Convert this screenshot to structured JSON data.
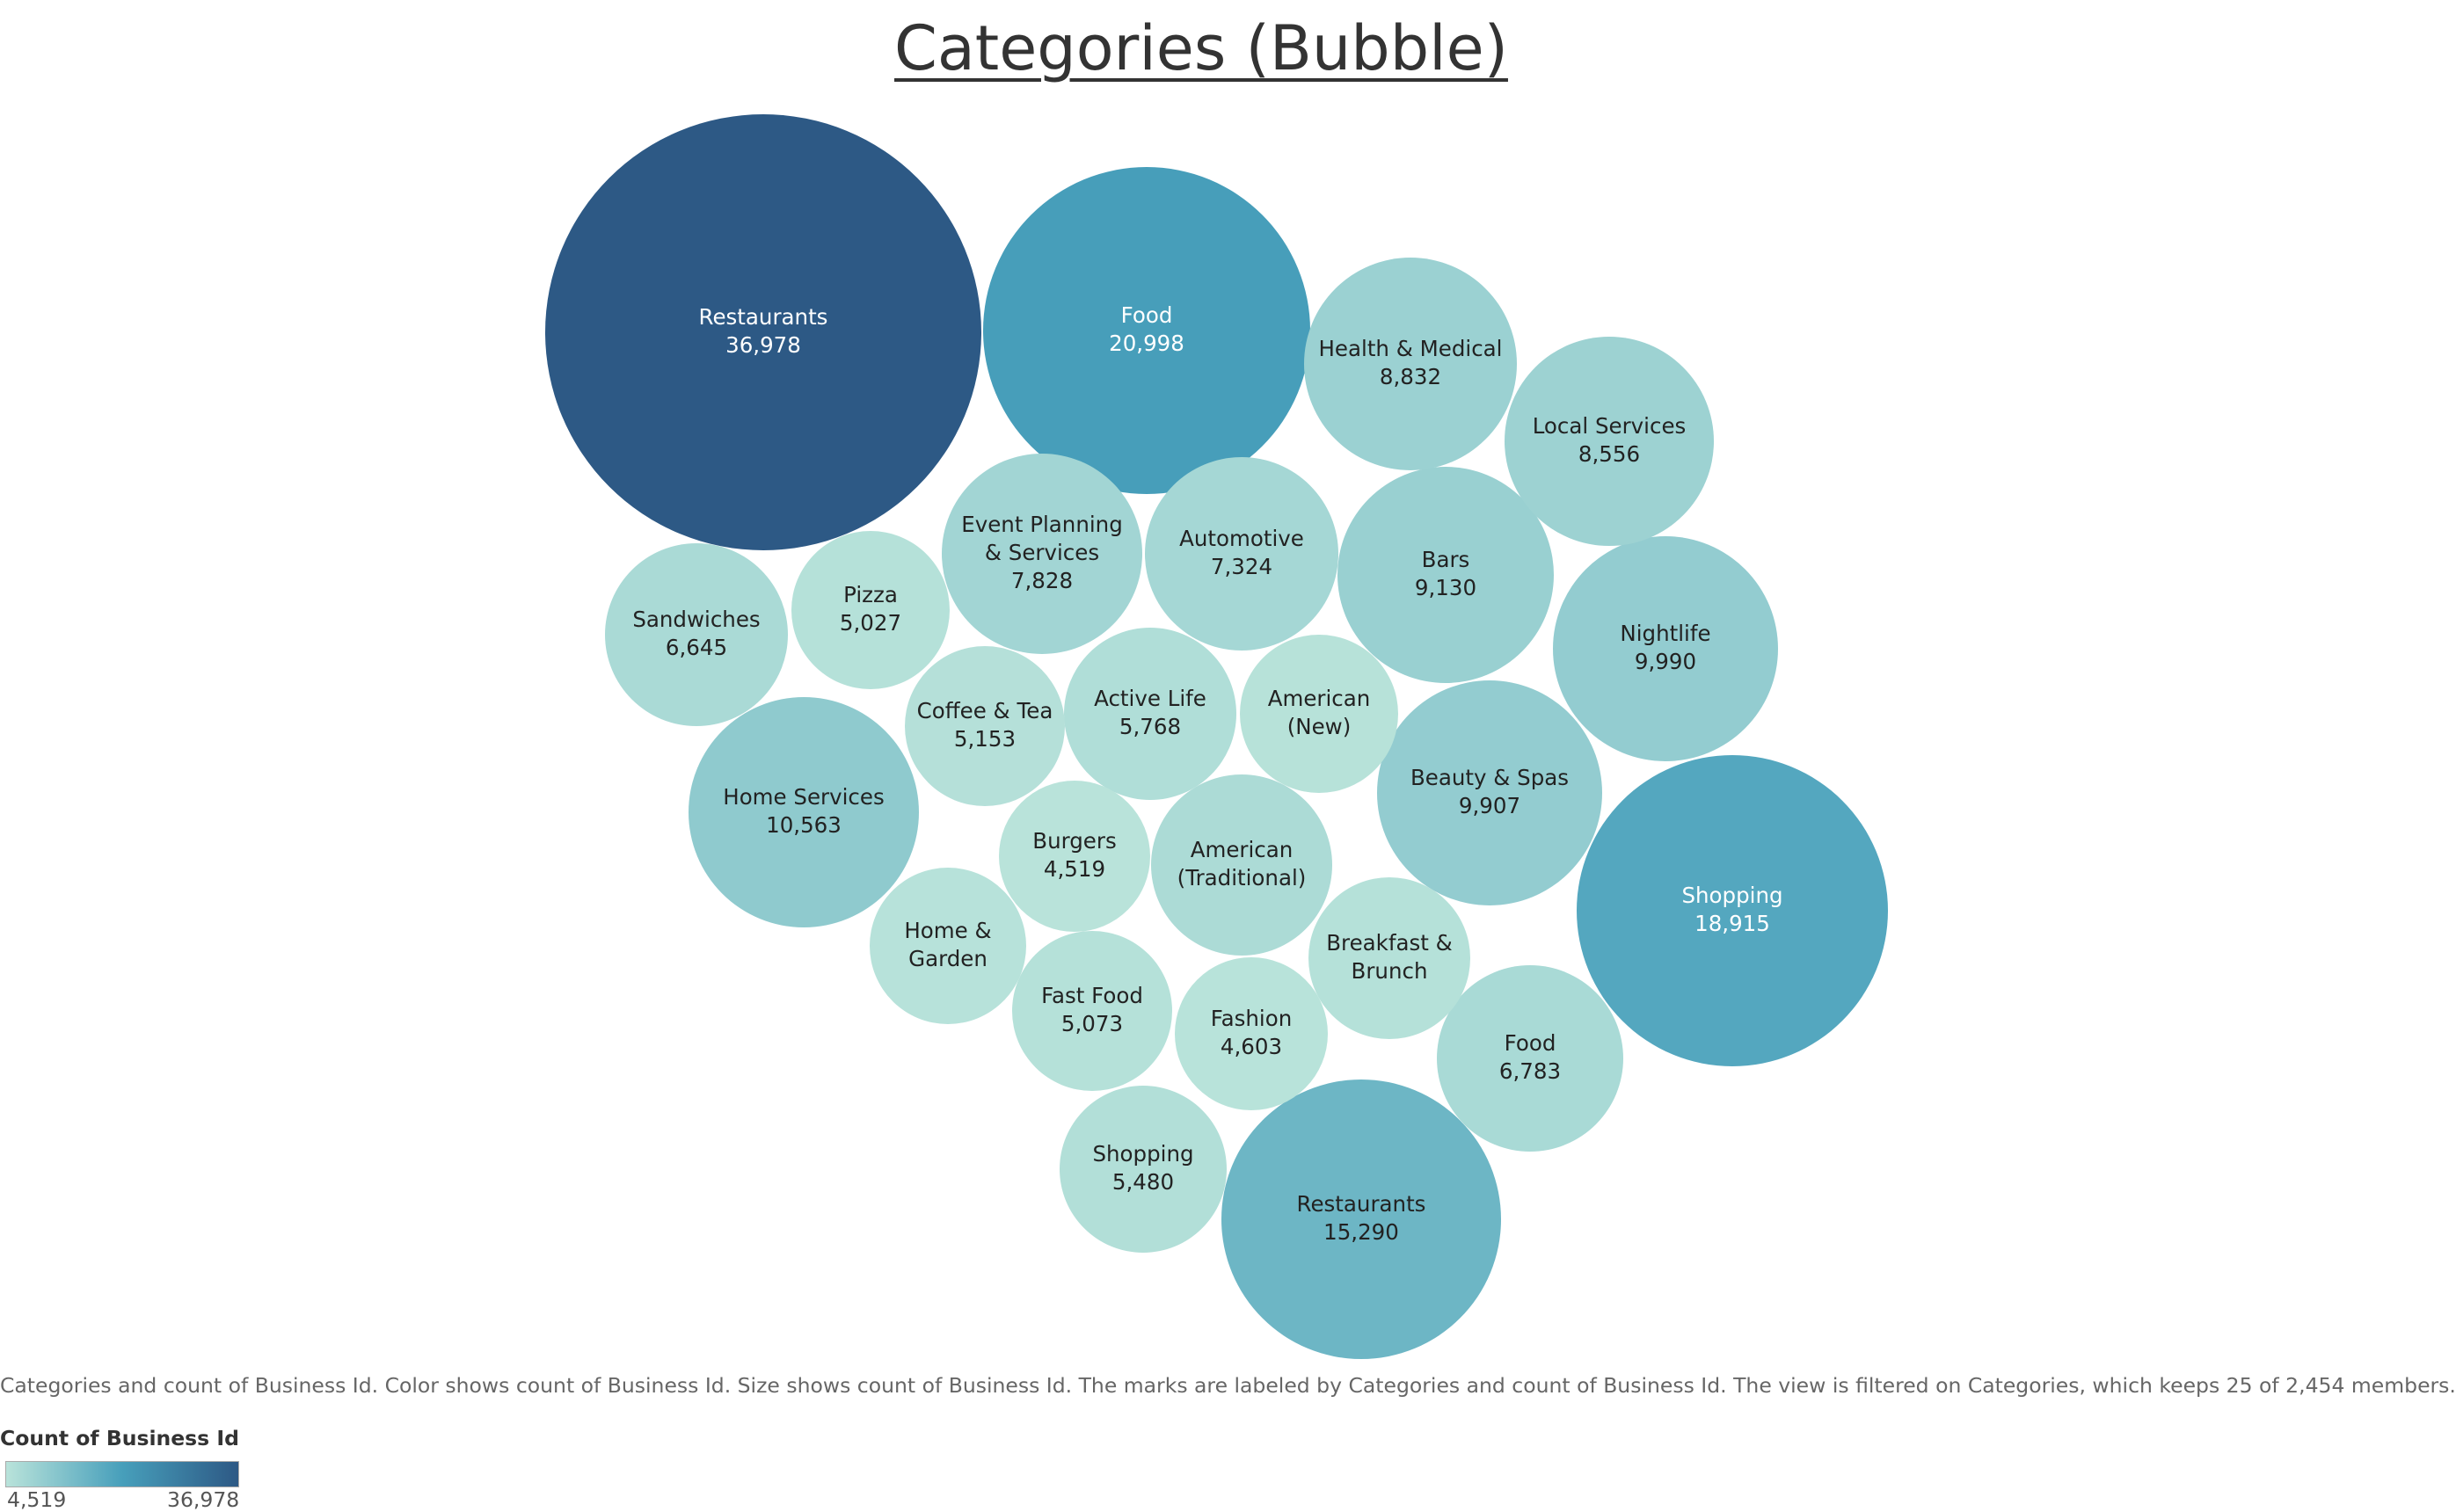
{
  "chart_data": {
    "type": "bubble",
    "title": "Categories (Bubble)",
    "caption": "Categories and count of Business Id.  Color shows count of Business Id.  Size shows count of Business Id.  The marks are labeled by Categories and count of Business Id. The view is filtered on Categories, which keeps 25 of 2,454 members.",
    "legend": {
      "title": "Count of Business Id",
      "min_label": "4,519",
      "max_label": "36,978",
      "min": 4519,
      "max": 36978,
      "colors": [
        "#b9e3da",
        "#479fbb",
        "#2d5985"
      ]
    },
    "bubbles": [
      {
        "category": "Restaurants",
        "lines": [
          "Restaurants"
        ],
        "value": 36978,
        "value_label": "36,978"
      },
      {
        "category": "Food",
        "lines": [
          "Food"
        ],
        "value": 20998,
        "value_label": "20,998"
      },
      {
        "category": "Shopping",
        "lines": [
          "Shopping"
        ],
        "value": 18915,
        "value_label": "18,915"
      },
      {
        "category": "Restaurants",
        "lines": [
          "Restaurants"
        ],
        "value": 15290,
        "value_label": "15,290"
      },
      {
        "category": "Home Services",
        "lines": [
          "Home Services"
        ],
        "value": 10563,
        "value_label": "10,563"
      },
      {
        "category": "Nightlife",
        "lines": [
          "Nightlife"
        ],
        "value": 9990,
        "value_label": "9,990"
      },
      {
        "category": "Beauty & Spas",
        "lines": [
          "Beauty & Spas"
        ],
        "value": 9907,
        "value_label": "9,907"
      },
      {
        "category": "Bars",
        "lines": [
          "Bars"
        ],
        "value": 9130,
        "value_label": "9,130"
      },
      {
        "category": "Health & Medical",
        "lines": [
          "Health & Medical"
        ],
        "value": 8832,
        "value_label": "8,832"
      },
      {
        "category": "Local Services",
        "lines": [
          "Local Services"
        ],
        "value": 8556,
        "value_label": "8,556"
      },
      {
        "category": "Event Planning & Services",
        "lines": [
          "Event Planning",
          "& Services"
        ],
        "value": 7828,
        "value_label": "7,828"
      },
      {
        "category": "Automotive",
        "lines": [
          "Automotive"
        ],
        "value": 7324,
        "value_label": "7,324"
      },
      {
        "category": "Food",
        "lines": [
          "Food"
        ],
        "value": 6783,
        "value_label": "6,783"
      },
      {
        "category": "Sandwiches",
        "lines": [
          "Sandwiches"
        ],
        "value": 6645,
        "value_label": "6,645"
      },
      {
        "category": "American (Traditional)",
        "lines": [
          "American",
          "(Traditional)"
        ],
        "value": null,
        "value_label": ""
      },
      {
        "category": "Active Life",
        "lines": [
          "Active Life"
        ],
        "value": 5768,
        "value_label": "5,768"
      },
      {
        "category": "Shopping",
        "lines": [
          "Shopping"
        ],
        "value": 5480,
        "value_label": "5,480"
      },
      {
        "category": "Coffee & Tea",
        "lines": [
          "Coffee & Tea"
        ],
        "value": 5153,
        "value_label": "5,153"
      },
      {
        "category": "Fast Food",
        "lines": [
          "Fast Food"
        ],
        "value": 5073,
        "value_label": "5,073"
      },
      {
        "category": "Pizza",
        "lines": [
          "Pizza"
        ],
        "value": 5027,
        "value_label": "5,027"
      },
      {
        "category": "American (New)",
        "lines": [
          "American",
          "(New)"
        ],
        "value": null,
        "value_label": ""
      },
      {
        "category": "Home & Garden",
        "lines": [
          "Home &",
          "Garden"
        ],
        "value": null,
        "value_label": ""
      },
      {
        "category": "Breakfast & Brunch",
        "lines": [
          "Breakfast &",
          "Brunch"
        ],
        "value": null,
        "value_label": ""
      },
      {
        "category": "Fashion",
        "lines": [
          "Fashion"
        ],
        "value": 4603,
        "value_label": "4,603"
      },
      {
        "category": "Burgers",
        "lines": [
          "Burgers"
        ],
        "value": 4519,
        "value_label": "4,519"
      }
    ]
  }
}
